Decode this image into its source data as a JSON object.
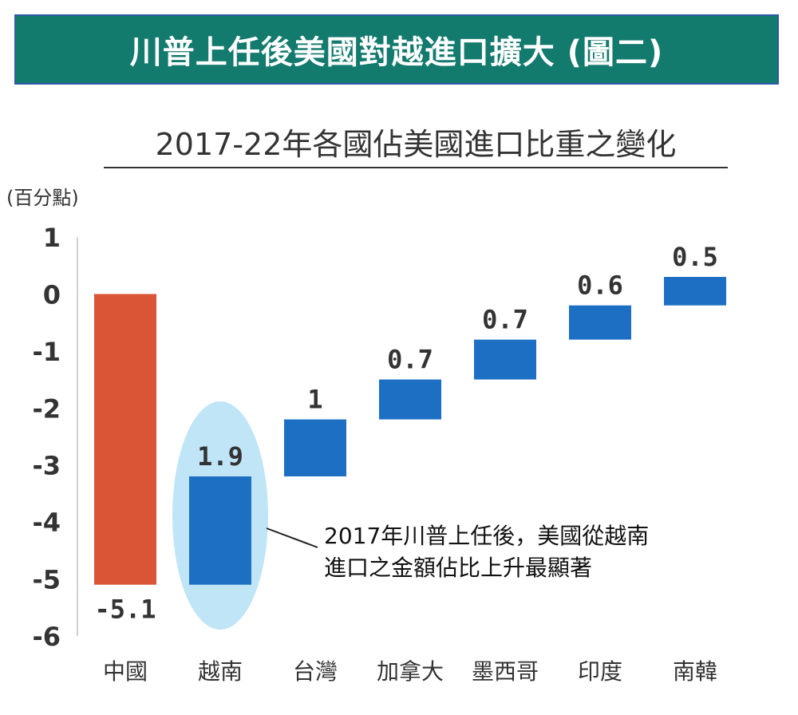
{
  "header": {
    "banner_title": "川普上任後美國對越進口擴大 (圖二)",
    "subtitle": "2017-22年各國佔美國進口比重之變化",
    "unit_label": "(百分點)"
  },
  "annotation": {
    "line1": "2017年川普上任後，美國從越南",
    "line2": "進口之金額佔比上升最顯著"
  },
  "colors": {
    "banner_bg": "#137a6e",
    "china": "#d95535",
    "others": "#1d6fc4",
    "highlight_ellipse": "#bfe5f7"
  },
  "chart_data": {
    "type": "bar",
    "subtype": "waterfall",
    "title": "2017-22年各國佔美國進口比重之變化",
    "ylabel": "(百分點)",
    "xlabel": "",
    "ylim": [
      -6,
      1
    ],
    "yticks": [
      "1",
      "0",
      "-1",
      "-2",
      "-3",
      "-4",
      "-5",
      "-6"
    ],
    "grid": false,
    "categories": [
      "中國",
      "越南",
      "台灣",
      "加拿大",
      "墨西哥",
      "印度",
      "南韓"
    ],
    "bars": [
      {
        "label": "中國",
        "start": 0,
        "end": -5.1,
        "value_label": "-5.1",
        "label_pos": "below"
      },
      {
        "label": "越南",
        "start": -5.1,
        "end": -3.2,
        "value_label": "1.9",
        "label_pos": "above",
        "highlight": true
      },
      {
        "label": "台灣",
        "start": -3.2,
        "end": -2.2,
        "value_label": "1",
        "label_pos": "above"
      },
      {
        "label": "加拿大",
        "start": -2.2,
        "end": -1.5,
        "value_label": "0.7",
        "label_pos": "above"
      },
      {
        "label": "墨西哥",
        "start": -1.5,
        "end": -0.8,
        "value_label": "0.7",
        "label_pos": "above"
      },
      {
        "label": "印度",
        "start": -0.8,
        "end": -0.2,
        "value_label": "0.6",
        "label_pos": "above"
      },
      {
        "label": "南韓",
        "start": -0.2,
        "end": 0.3,
        "value_label": "0.5",
        "label_pos": "above"
      }
    ]
  }
}
